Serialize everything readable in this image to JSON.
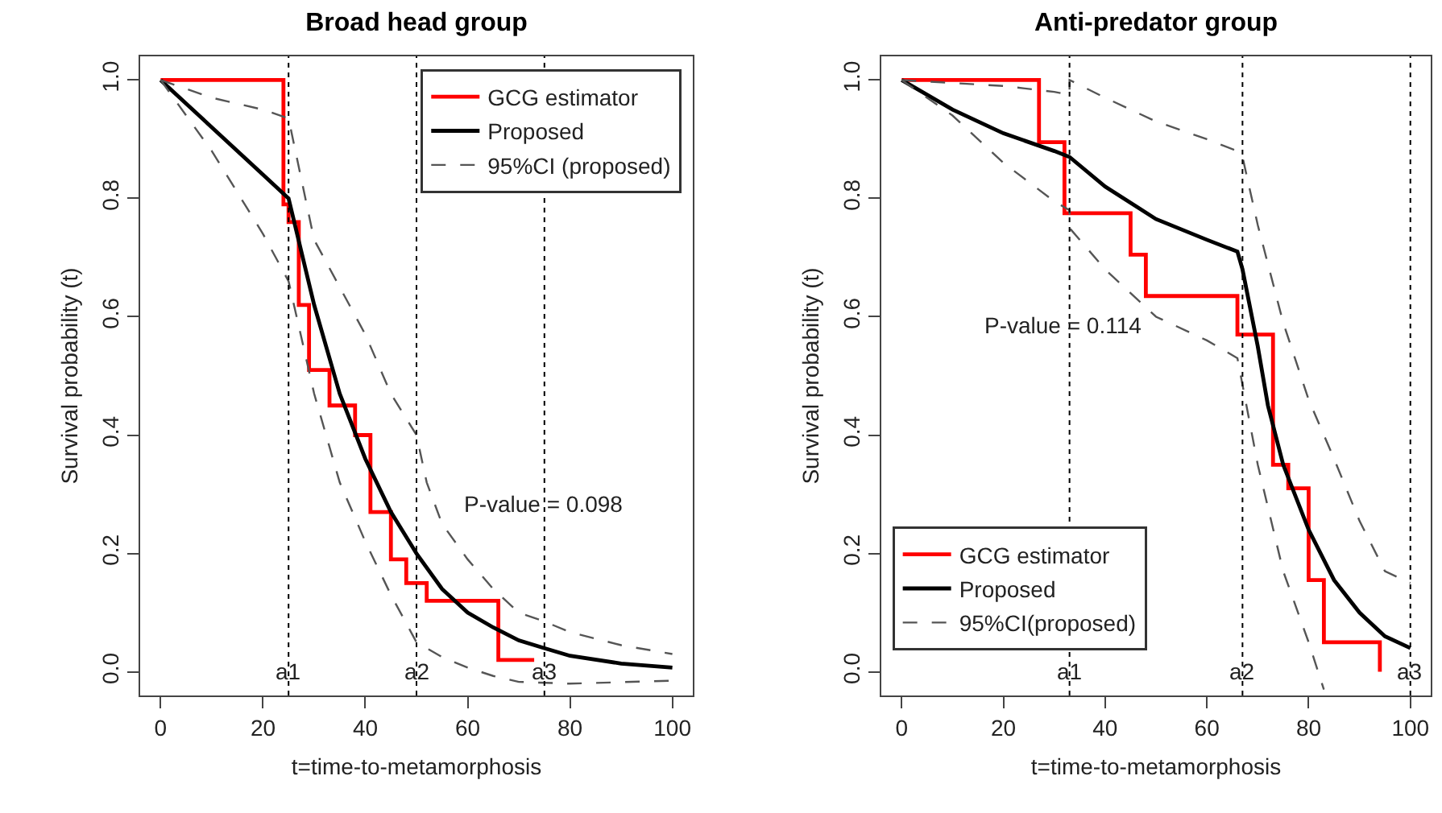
{
  "chart_data": [
    {
      "type": "line",
      "title": "Broad head group",
      "xlabel": "t=time-to-metamorphosis",
      "ylabel": "Survival probability (t)",
      "xlim": [
        -4,
        104
      ],
      "ylim": [
        -0.04,
        1.04
      ],
      "xticks": [
        0,
        20,
        40,
        60,
        80,
        100
      ],
      "yticks": [
        {
          "value": 0,
          "label": "0.0"
        },
        {
          "value": 0.2,
          "label": "0.2"
        },
        {
          "value": 0.4,
          "label": "0.4"
        },
        {
          "value": 0.6,
          "label": "0.6"
        },
        {
          "value": 0.8,
          "label": "0.8"
        },
        {
          "value": 1,
          "label": "1.0"
        }
      ],
      "legend": "top right",
      "series": [
        {
          "name": "GCG estimator",
          "type": "step",
          "color": "#ff0000",
          "line_style": "solid",
          "x": [
            0,
            24,
            25,
            27,
            29,
            33,
            38,
            41,
            45,
            48,
            52,
            66,
            73
          ],
          "values": [
            1,
            0.79,
            0.76,
            0.62,
            0.51,
            0.45,
            0.4,
            0.27,
            0.19,
            0.15,
            0.12,
            0.02,
            0.02
          ]
        },
        {
          "name": "Proposed",
          "type": "line",
          "color": "#000000",
          "line_style": "solid",
          "x": [
            0,
            10,
            20,
            25,
            30,
            35,
            40,
            45,
            50,
            55,
            60,
            65,
            70,
            75,
            80,
            90,
            100
          ],
          "values": [
            1,
            0.92,
            0.84,
            0.8,
            0.62,
            0.47,
            0.36,
            0.27,
            0.2,
            0.14,
            0.1,
            0.075,
            0.053,
            0.04,
            0.027,
            0.014,
            0.007
          ]
        },
        {
          "name": "95%CI (proposed)",
          "type": "line",
          "color": "#555555",
          "line_style": "dashed",
          "x": [
            0,
            10,
            20,
            25,
            30,
            40,
            45,
            50,
            52,
            55,
            60,
            65,
            70,
            75,
            80,
            90,
            100
          ],
          "values": [
            1,
            0.97,
            0.95,
            0.935,
            0.73,
            0.57,
            0.47,
            0.4,
            0.32,
            0.25,
            0.19,
            0.14,
            0.1,
            0.085,
            0.067,
            0.045,
            0.03
          ]
        },
        {
          "type": "line",
          "color": "#555555",
          "line_style": "dashed",
          "x": [
            0,
            10,
            20,
            25,
            30,
            35,
            40,
            45,
            50,
            55,
            60,
            65,
            70,
            80,
            100
          ],
          "values": [
            1,
            0.88,
            0.74,
            0.66,
            0.47,
            0.32,
            0.22,
            0.13,
            0.05,
            0.025,
            0.007,
            -0.007,
            -0.017,
            -0.02,
            -0.015
          ]
        }
      ],
      "ref_lines": [
        {
          "axis": "x",
          "value": 25,
          "label": "a1",
          "line_style": "dotted"
        },
        {
          "axis": "x",
          "value": 50,
          "label": "a2",
          "line_style": "dotted"
        },
        {
          "axis": "x",
          "value": 75,
          "label": "a3",
          "line_style": "dotted"
        }
      ],
      "annotations": [
        "P-value = 0.098"
      ]
    },
    {
      "type": "line",
      "title": "Anti-predator group",
      "xlabel": "t=time-to-metamorphosis",
      "ylabel": "Survival probability (t)",
      "xlim": [
        -4,
        104
      ],
      "ylim": [
        -0.04,
        1.04
      ],
      "xticks": [
        0,
        20,
        40,
        60,
        80,
        100
      ],
      "yticks": [
        {
          "value": 0,
          "label": "0.0"
        },
        {
          "value": 0.2,
          "label": "0.2"
        },
        {
          "value": 0.4,
          "label": "0.4"
        },
        {
          "value": 0.6,
          "label": "0.6"
        },
        {
          "value": 0.8,
          "label": "0.8"
        },
        {
          "value": 1,
          "label": "1.0"
        }
      ],
      "legend": "bottom left",
      "series": [
        {
          "name": "GCG estimator",
          "type": "step",
          "color": "#ff0000",
          "line_style": "solid",
          "x": [
            0,
            27,
            32,
            45,
            48,
            66,
            73,
            76,
            80,
            83,
            94
          ],
          "values": [
            1,
            0.895,
            0.775,
            0.705,
            0.635,
            0.57,
            0.35,
            0.31,
            0.155,
            0.05,
            0
          ]
        },
        {
          "name": "Proposed",
          "type": "line",
          "color": "#000000",
          "line_style": "solid",
          "x": [
            0,
            10,
            20,
            30,
            33,
            40,
            50,
            60,
            66,
            67,
            70,
            72,
            75,
            80,
            85,
            90,
            95,
            100
          ],
          "values": [
            1,
            0.95,
            0.91,
            0.88,
            0.87,
            0.82,
            0.765,
            0.73,
            0.71,
            0.68,
            0.55,
            0.45,
            0.35,
            0.24,
            0.155,
            0.1,
            0.06,
            0.04
          ]
        },
        {
          "name": "95%CI(proposed)",
          "type": "line",
          "color": "#555555",
          "line_style": "dashed",
          "x": [
            0,
            10,
            20,
            30,
            33,
            33,
            40,
            50,
            60,
            66,
            67,
            70,
            75,
            80,
            85,
            90,
            95,
            100
          ],
          "values": [
            1,
            0.995,
            0.99,
            0.98,
            0.975,
            1,
            0.97,
            0.93,
            0.9,
            0.88,
            0.87,
            0.755,
            0.59,
            0.46,
            0.36,
            0.255,
            0.17,
            0.15
          ]
        },
        {
          "type": "line",
          "color": "#555555",
          "line_style": "dashed",
          "x": [
            0,
            10,
            20,
            30,
            33,
            33,
            40,
            50,
            60,
            66,
            70,
            75,
            80,
            83
          ],
          "values": [
            1,
            0.94,
            0.86,
            0.795,
            0.78,
            0.75,
            0.68,
            0.6,
            0.56,
            0.53,
            0.35,
            0.17,
            0.05,
            -0.03
          ]
        }
      ],
      "ref_lines": [
        {
          "axis": "x",
          "value": 33,
          "label": "a1",
          "line_style": "dotted"
        },
        {
          "axis": "x",
          "value": 67,
          "label": "a2",
          "line_style": "dotted"
        },
        {
          "axis": "x",
          "value": 100,
          "label": "a3",
          "line_style": "dotted"
        }
      ],
      "annotations": [
        "P-value = 0.114"
      ]
    }
  ]
}
